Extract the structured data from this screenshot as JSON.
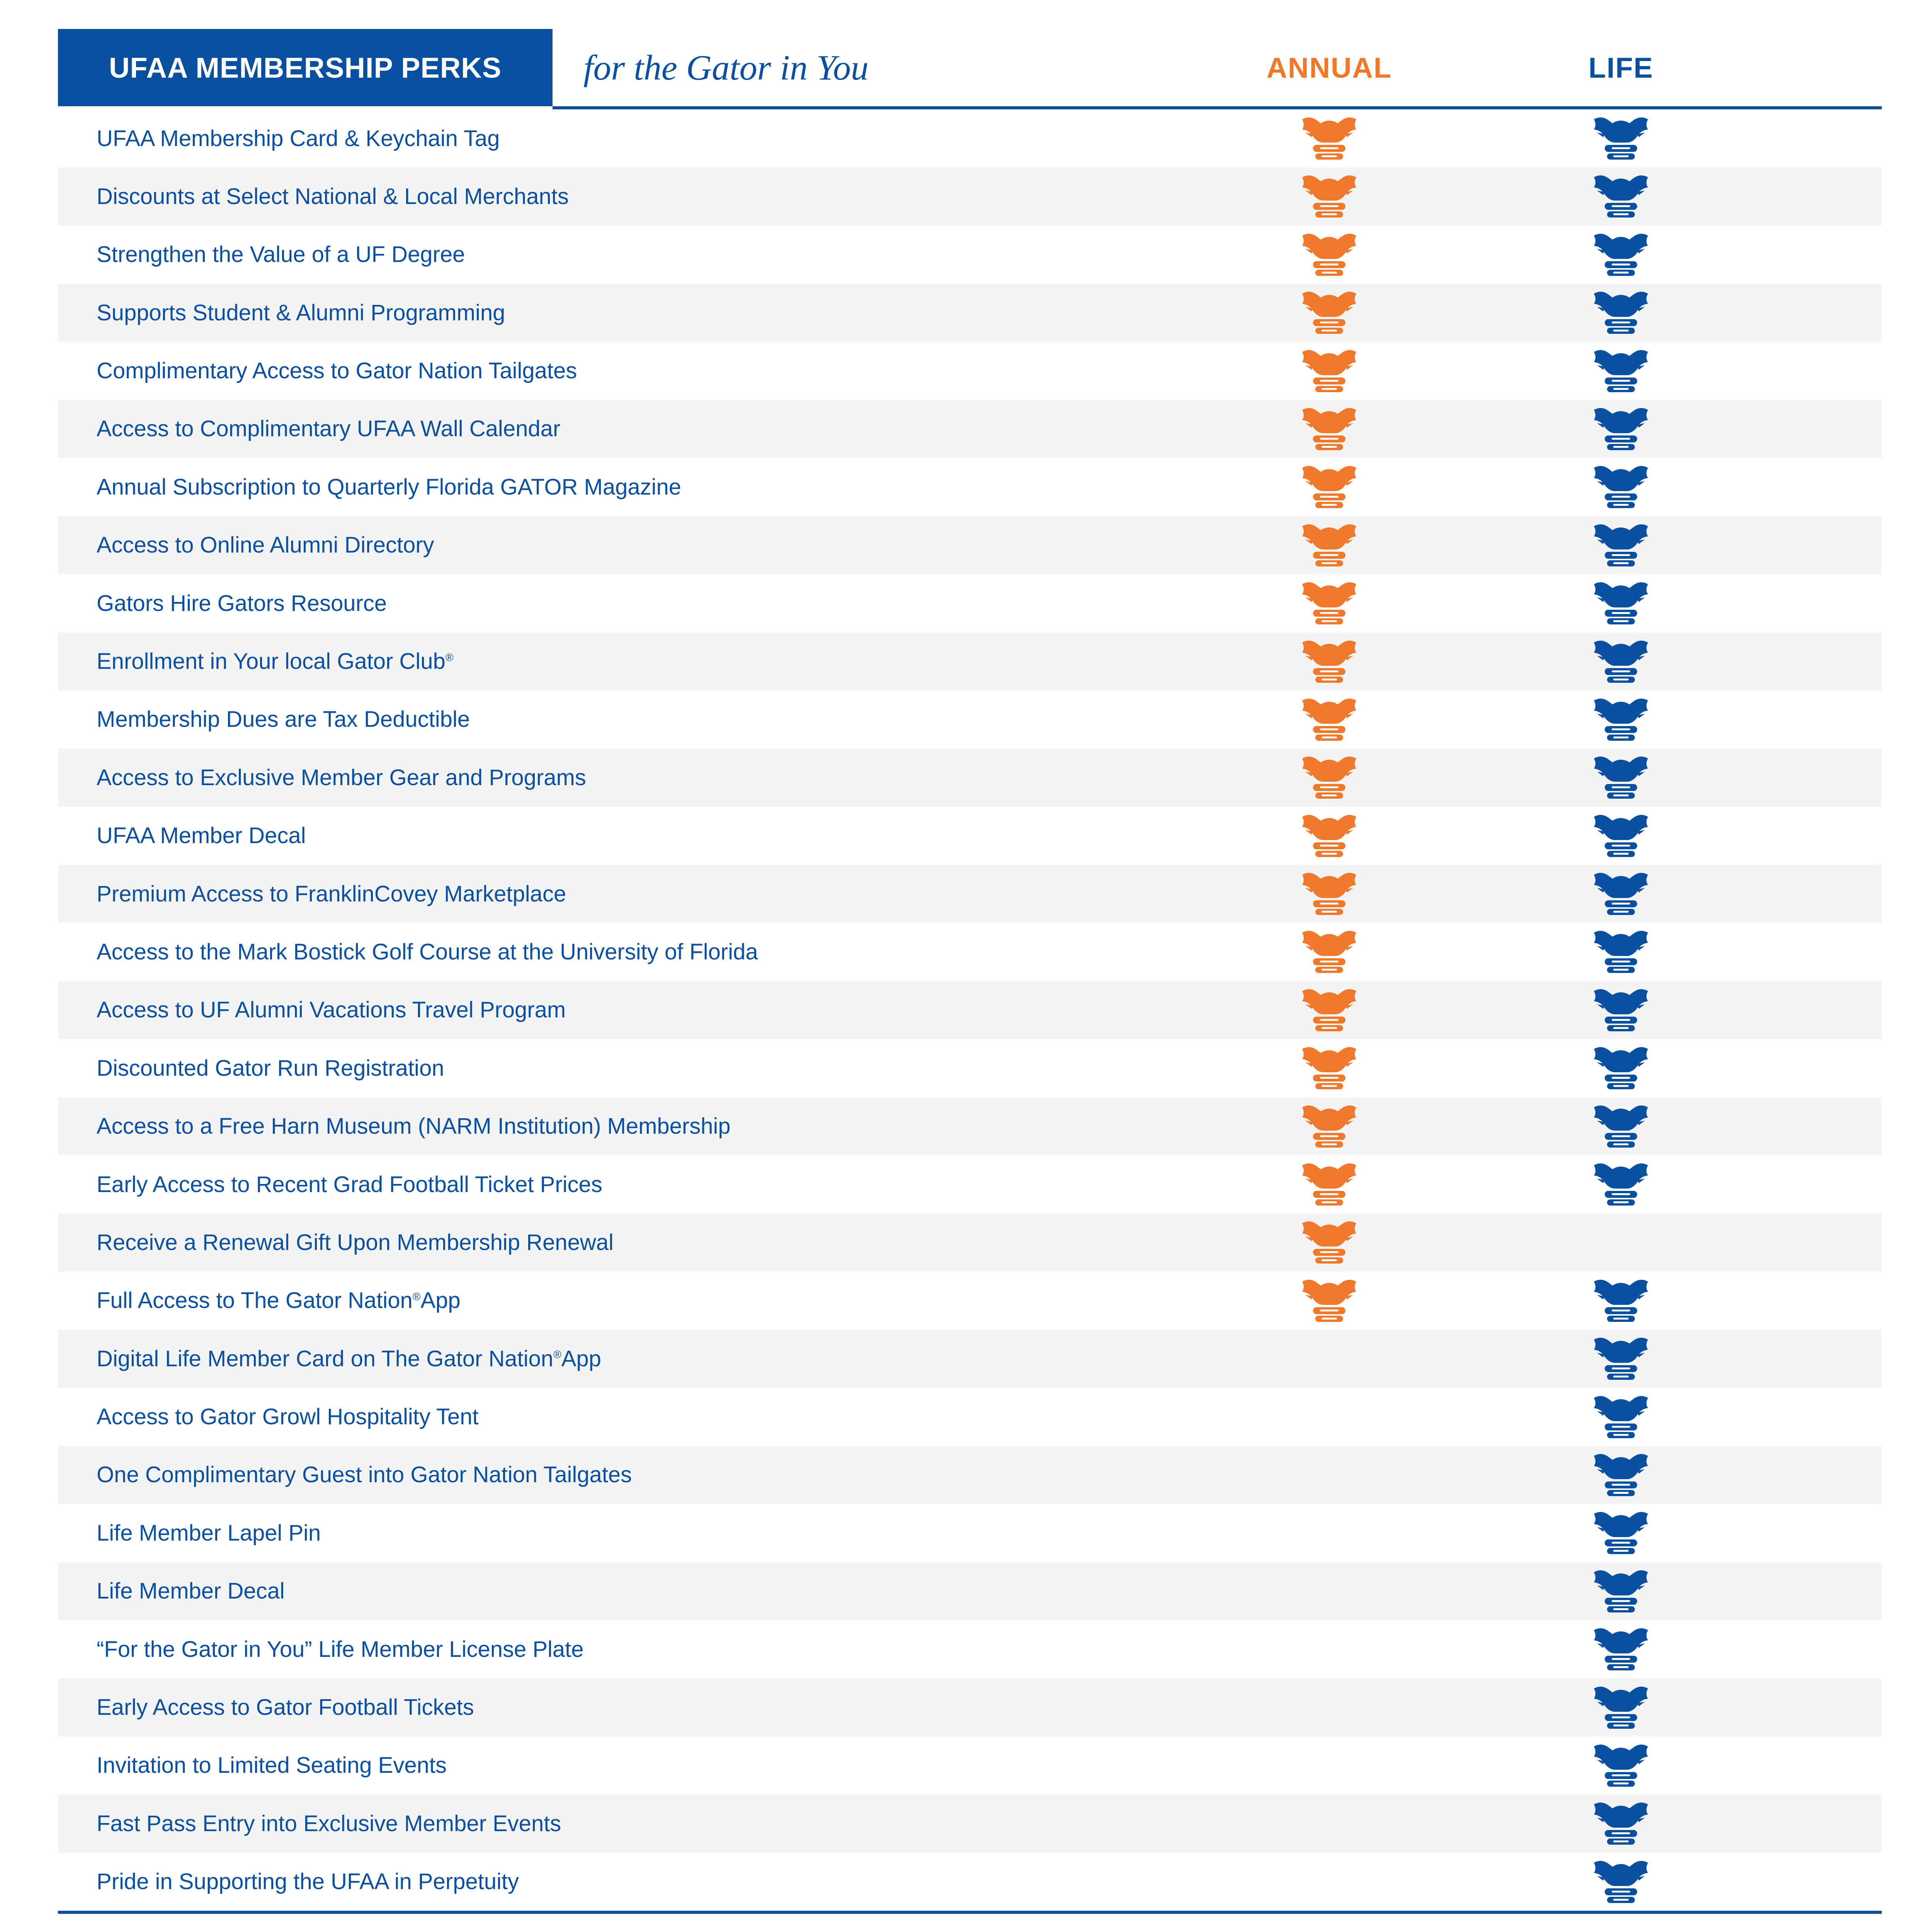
{
  "header": {
    "title": "UFAA MEMBERSHIP PERKS",
    "tagline": "for the Gator in You",
    "col_annual": "ANNUAL",
    "col_life": "LIFE"
  },
  "colors": {
    "annual": "#f0782b",
    "life": "#0b4fa0",
    "row_alt": "#f4f4f4"
  },
  "marker_icon": "gator-head-icon",
  "perks": [
    {
      "label": "UFAA Membership Card & Keychain Tag",
      "sup": "",
      "suffix": "",
      "annual": true,
      "life": true
    },
    {
      "label": "Discounts at Select National & Local Merchants",
      "sup": "",
      "suffix": "",
      "annual": true,
      "life": true
    },
    {
      "label": "Strengthen the Value of a UF Degree",
      "sup": "",
      "suffix": "",
      "annual": true,
      "life": true
    },
    {
      "label": "Supports Student & Alumni Programming",
      "sup": "",
      "suffix": "",
      "annual": true,
      "life": true
    },
    {
      "label": "Complimentary Access to Gator Nation Tailgates",
      "sup": "",
      "suffix": "",
      "annual": true,
      "life": true
    },
    {
      "label": "Access to Complimentary UFAA Wall Calendar",
      "sup": "",
      "suffix": "",
      "annual": true,
      "life": true
    },
    {
      "label": "Annual Subscription to Quarterly Florida GATOR Magazine",
      "sup": "",
      "suffix": "",
      "annual": true,
      "life": true
    },
    {
      "label": "Access to Online Alumni Directory",
      "sup": "",
      "suffix": "",
      "annual": true,
      "life": true
    },
    {
      "label": "Gators Hire Gators Resource",
      "sup": "",
      "suffix": "",
      "annual": true,
      "life": true
    },
    {
      "label": "Enrollment in Your local Gator Club",
      "sup": "®",
      "suffix": "",
      "annual": true,
      "life": true
    },
    {
      "label": "Membership Dues are Tax Deductible",
      "sup": "",
      "suffix": "",
      "annual": true,
      "life": true
    },
    {
      "label": "Access to Exclusive Member Gear and Programs",
      "sup": "",
      "suffix": "",
      "annual": true,
      "life": true
    },
    {
      "label": "UFAA Member Decal",
      "sup": "",
      "suffix": "",
      "annual": true,
      "life": true
    },
    {
      "label": "Premium Access to FranklinCovey Marketplace",
      "sup": "",
      "suffix": "",
      "annual": true,
      "life": true
    },
    {
      "label": "Access to the Mark Bostick Golf Course at the University of Florida",
      "sup": "",
      "suffix": "",
      "annual": true,
      "life": true
    },
    {
      "label": "Access to UF Alumni Vacations Travel Program",
      "sup": "",
      "suffix": "",
      "annual": true,
      "life": true
    },
    {
      "label": "Discounted Gator Run Registration",
      "sup": "",
      "suffix": "",
      "annual": true,
      "life": true
    },
    {
      "label": "Access to a Free Harn Museum (NARM Institution) Membership",
      "sup": "",
      "suffix": "",
      "annual": true,
      "life": true
    },
    {
      "label": "Early Access to Recent Grad Football Ticket Prices",
      "sup": "",
      "suffix": "",
      "annual": true,
      "life": true
    },
    {
      "label": "Receive a Renewal Gift Upon Membership Renewal",
      "sup": "",
      "suffix": "",
      "annual": true,
      "life": false
    },
    {
      "label": "Full Access to The Gator Nation",
      "sup": "®",
      "suffix": " App",
      "annual": true,
      "life": true
    },
    {
      "label": "Digital Life Member Card on The Gator Nation",
      "sup": "®",
      "suffix": " App",
      "annual": false,
      "life": true
    },
    {
      "label": "Access to Gator Growl Hospitality Tent",
      "sup": "",
      "suffix": "",
      "annual": false,
      "life": true
    },
    {
      "label": "One Complimentary Guest into Gator Nation Tailgates",
      "sup": "",
      "suffix": "",
      "annual": false,
      "life": true
    },
    {
      "label": "Life Member Lapel Pin",
      "sup": "",
      "suffix": "",
      "annual": false,
      "life": true
    },
    {
      "label": "Life Member Decal",
      "sup": "",
      "suffix": "",
      "annual": false,
      "life": true
    },
    {
      "label": "“For the Gator in You” Life Member License Plate",
      "sup": "",
      "suffix": "",
      "annual": false,
      "life": true
    },
    {
      "label": "Early Access to Gator Football Tickets",
      "sup": "",
      "suffix": "",
      "annual": false,
      "life": true
    },
    {
      "label": "Invitation to Limited Seating Events",
      "sup": "",
      "suffix": "",
      "annual": false,
      "life": true
    },
    {
      "label": "Fast Pass Entry into Exclusive Member Events",
      "sup": "",
      "suffix": "",
      "annual": false,
      "life": true
    },
    {
      "label": "Pride in Supporting the UFAA in Perpetuity",
      "sup": "",
      "suffix": "",
      "annual": false,
      "life": true
    }
  ]
}
